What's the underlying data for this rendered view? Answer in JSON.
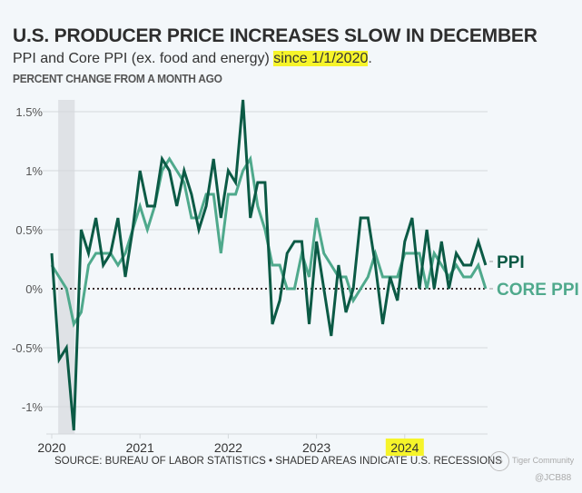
{
  "header": {
    "title": "U.S. PRODUCER PRICE INCREASES SLOW IN DECEMBER",
    "subtitle_prefix": "PPI and Core PPI (ex. food and energy) ",
    "subtitle_highlight": "since 1/1/2020",
    "subtitle_suffix": ".",
    "units_label": "PERCENT CHANGE FROM A MONTH AGO"
  },
  "footer": {
    "source": "SOURCE: BUREAU OF LABOR STATISTICS • SHADED AREAS INDICATE U.S. RECESSIONS",
    "watermark_text": "Tiger Community",
    "watermark_user": "@JCB88"
  },
  "colors": {
    "ppi": "#0b5a45",
    "core": "#4fa98c",
    "highlight": "#f6f42a",
    "recession": "#dfe2e6",
    "grid": "#d4d8dc",
    "background": "#f3f7fa"
  },
  "chart_data": {
    "type": "line",
    "title": "U.S. PRODUCER PRICE INCREASES SLOW IN DECEMBER",
    "subtitle": "PPI and Core PPI (ex. food and energy) since 1/1/2020.",
    "ylabel": "PERCENT CHANGE FROM A MONTH AGO",
    "xlabel": "",
    "x_start": "2020-01",
    "x_end": "2024-12",
    "x_frequency": "monthly",
    "x_ticks": [
      "2020",
      "2021",
      "2022",
      "2023",
      "2024"
    ],
    "x_tick_highlight": "2024",
    "y_ticks": [
      {
        "value": 1.5,
        "label": "1.5%"
      },
      {
        "value": 1.0,
        "label": "1%"
      },
      {
        "value": 0.5,
        "label": "0.5%"
      },
      {
        "value": 0.0,
        "label": "0%"
      },
      {
        "value": -0.5,
        "label": "-0.5%"
      },
      {
        "value": -1.0,
        "label": "-1%"
      }
    ],
    "ylim": [
      -1.25,
      1.6
    ],
    "grid": true,
    "zero_line": "dotted",
    "recessions": [
      {
        "start": "2020-02",
        "end": "2020-04"
      }
    ],
    "legend_placement": "right, inline labels",
    "series": [
      {
        "name": "PPI",
        "label": "PPI",
        "values": [
          0.3,
          -0.6,
          -0.5,
          -1.2,
          0.5,
          0.3,
          0.6,
          0.2,
          0.3,
          0.6,
          0.1,
          0.5,
          1.0,
          0.7,
          0.7,
          1.1,
          1.0,
          0.7,
          1.0,
          0.8,
          0.5,
          0.7,
          1.1,
          0.6,
          1.0,
          0.9,
          1.6,
          0.6,
          0.9,
          0.9,
          -0.3,
          -0.1,
          0.3,
          0.4,
          0.4,
          -0.3,
          0.4,
          0.0,
          -0.4,
          0.2,
          -0.2,
          0.0,
          0.6,
          0.6,
          0.2,
          -0.3,
          0.1,
          -0.1,
          0.4,
          0.6,
          0.0,
          0.5,
          0.0,
          0.4,
          0.0,
          0.3,
          0.2,
          0.2,
          0.4,
          0.2
        ]
      },
      {
        "name": "Core PPI",
        "label": "CORE PPI",
        "values": [
          0.2,
          0.1,
          0.0,
          -0.3,
          -0.2,
          0.2,
          0.3,
          0.3,
          0.3,
          0.2,
          0.3,
          0.5,
          0.7,
          0.5,
          0.7,
          1.0,
          1.1,
          1.0,
          0.9,
          0.6,
          0.6,
          0.8,
          0.8,
          0.3,
          0.8,
          0.8,
          1.0,
          1.1,
          0.7,
          0.5,
          0.2,
          0.2,
          0.0,
          0.0,
          0.3,
          0.1,
          0.6,
          0.3,
          0.2,
          0.1,
          0.1,
          -0.1,
          0.0,
          0.1,
          0.3,
          0.1,
          0.1,
          0.1,
          0.3,
          0.3,
          0.3,
          0.0,
          0.3,
          0.2,
          0.1,
          0.2,
          0.1,
          0.1,
          0.2,
          0.0
        ]
      }
    ]
  }
}
